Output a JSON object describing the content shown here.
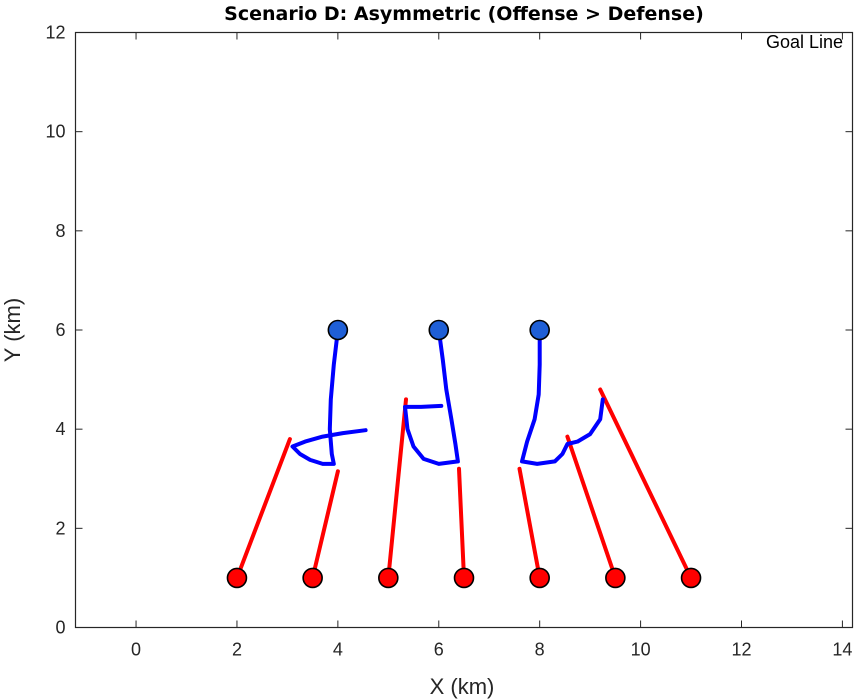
{
  "chart_data": {
    "type": "line",
    "title": "Scenario D: Asymmetric (Offense > Defense)",
    "xlabel": "X (km)",
    "ylabel": "Y (km)",
    "xlim": [
      -1.2,
      14.2
    ],
    "ylim": [
      0,
      12
    ],
    "xticks": [
      0,
      2,
      4,
      6,
      8,
      10,
      12,
      14
    ],
    "yticks": [
      0,
      2,
      4,
      6,
      8,
      10,
      12
    ],
    "grid": false,
    "annotation": "Goal Line",
    "colors": {
      "offense": "#ff0000",
      "defense": "#0000ff",
      "defense_marker": "#1f5fd6",
      "marker_edge": "#000000",
      "axis": "#262626"
    },
    "offense": [
      {
        "start": [
          2.0,
          1.0
        ],
        "path": [
          [
            2.0,
            1.0
          ],
          [
            3.05,
            3.8
          ]
        ]
      },
      {
        "start": [
          3.5,
          1.0
        ],
        "path": [
          [
            3.5,
            1.0
          ],
          [
            4.0,
            3.15
          ]
        ]
      },
      {
        "start": [
          5.0,
          1.0
        ],
        "path": [
          [
            5.0,
            1.0
          ],
          [
            5.35,
            4.6
          ]
        ]
      },
      {
        "start": [
          6.5,
          1.0
        ],
        "path": [
          [
            6.5,
            1.0
          ],
          [
            6.4,
            3.2
          ]
        ]
      },
      {
        "start": [
          8.0,
          1.0
        ],
        "path": [
          [
            8.0,
            1.0
          ],
          [
            7.6,
            3.2
          ]
        ]
      },
      {
        "start": [
          9.5,
          1.0
        ],
        "path": [
          [
            9.5,
            1.0
          ],
          [
            8.55,
            3.85
          ]
        ]
      },
      {
        "start": [
          11.0,
          1.0
        ],
        "path": [
          [
            11.0,
            1.0
          ],
          [
            9.2,
            4.8
          ]
        ]
      }
    ],
    "defense": [
      {
        "start": [
          4.0,
          6.0
        ],
        "path": [
          [
            4.0,
            6.0
          ],
          [
            3.92,
            5.3
          ],
          [
            3.86,
            4.6
          ],
          [
            3.84,
            4.0
          ],
          [
            3.88,
            3.5
          ],
          [
            3.92,
            3.3
          ],
          [
            3.7,
            3.3
          ],
          [
            3.45,
            3.38
          ],
          [
            3.25,
            3.5
          ],
          [
            3.1,
            3.65
          ],
          [
            3.35,
            3.75
          ],
          [
            3.7,
            3.85
          ],
          [
            4.1,
            3.92
          ],
          [
            4.55,
            3.98
          ]
        ]
      },
      {
        "start": [
          6.0,
          6.0
        ],
        "path": [
          [
            6.0,
            6.0
          ],
          [
            6.08,
            5.4
          ],
          [
            6.15,
            4.8
          ],
          [
            6.25,
            4.2
          ],
          [
            6.33,
            3.7
          ],
          [
            6.38,
            3.35
          ],
          [
            6.0,
            3.3
          ],
          [
            5.7,
            3.4
          ],
          [
            5.5,
            3.65
          ],
          [
            5.38,
            4.0
          ],
          [
            5.33,
            4.45
          ],
          [
            5.65,
            4.45
          ],
          [
            6.05,
            4.47
          ]
        ]
      },
      {
        "start": [
          8.0,
          6.0
        ],
        "path": [
          [
            8.0,
            6.0
          ],
          [
            8.0,
            5.3
          ],
          [
            7.98,
            4.7
          ],
          [
            7.9,
            4.2
          ],
          [
            7.75,
            3.75
          ],
          [
            7.65,
            3.35
          ],
          [
            7.95,
            3.3
          ],
          [
            8.3,
            3.35
          ],
          [
            8.45,
            3.5
          ],
          [
            8.55,
            3.7
          ],
          [
            8.75,
            3.75
          ],
          [
            9.0,
            3.9
          ],
          [
            9.2,
            4.2
          ],
          [
            9.25,
            4.6
          ]
        ]
      }
    ]
  }
}
